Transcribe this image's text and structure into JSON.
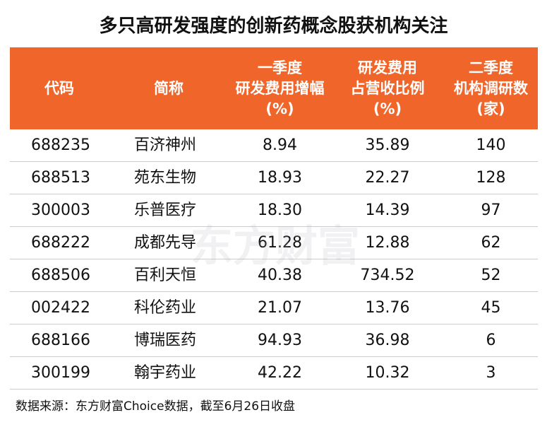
{
  "title": "多只高研发强度的创新药概念股获机构关注",
  "watermark": "东方财富",
  "table": {
    "header": [
      [
        "代码"
      ],
      [
        "简称"
      ],
      [
        "一季度",
        "研发费用增幅",
        "(%)"
      ],
      [
        "研发费用",
        "占营收比例",
        "(%)"
      ],
      [
        "二季度",
        "机构调研数",
        "(家)"
      ]
    ],
    "rows": [
      [
        "688235",
        "百济神州",
        "8.94",
        "35.89",
        "140"
      ],
      [
        "688513",
        "苑东生物",
        "18.93",
        "22.27",
        "128"
      ],
      [
        "300003",
        "乐普医疗",
        "18.30",
        "14.39",
        "97"
      ],
      [
        "688222",
        "成都先导",
        "61.28",
        "12.88",
        "62"
      ],
      [
        "688506",
        "百利天恒",
        "40.38",
        "734.52",
        "52"
      ],
      [
        "002422",
        "科伦药业",
        "21.07",
        "13.76",
        "45"
      ],
      [
        "688166",
        "博瑞医药",
        "94.93",
        "36.98",
        "6"
      ],
      [
        "300199",
        "翰宇药业",
        "42.22",
        "10.32",
        "3"
      ]
    ]
  },
  "footer": "数据来源：东方财富Choice数据，截至6月26日收盘"
}
